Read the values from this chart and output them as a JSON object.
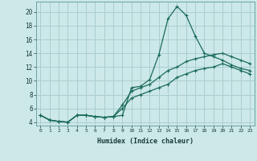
{
  "xlabel": "Humidex (Indice chaleur)",
  "x": [
    0,
    1,
    2,
    3,
    4,
    5,
    6,
    7,
    8,
    9,
    10,
    11,
    12,
    13,
    14,
    15,
    16,
    17,
    18,
    19,
    20,
    21,
    22,
    23
  ],
  "line1": [
    5.0,
    4.3,
    4.1,
    4.0,
    5.0,
    5.0,
    4.8,
    4.7,
    4.8,
    5.0,
    9.0,
    9.2,
    10.2,
    13.8,
    19.0,
    20.8,
    19.5,
    16.5,
    14.0,
    13.5,
    13.0,
    12.3,
    11.8,
    11.5
  ],
  "line2": [
    5.0,
    4.3,
    4.1,
    4.0,
    5.0,
    5.0,
    4.8,
    4.7,
    4.8,
    6.5,
    8.5,
    9.0,
    9.5,
    10.5,
    11.5,
    12.0,
    12.8,
    13.2,
    13.5,
    13.8,
    14.0,
    13.5,
    13.0,
    12.5
  ],
  "line3": [
    5.0,
    4.3,
    4.1,
    4.0,
    5.0,
    5.0,
    4.8,
    4.7,
    4.8,
    6.0,
    7.5,
    8.0,
    8.5,
    9.0,
    9.5,
    10.5,
    11.0,
    11.5,
    11.8,
    12.0,
    12.5,
    12.0,
    11.5,
    11.0
  ],
  "line_color": "#1a6b5a",
  "bg_color": "#cce8e8",
  "grid_color": "#aacece",
  "ylim": [
    3.5,
    21.5
  ],
  "xlim": [
    -0.5,
    23.5
  ],
  "yticks": [
    4,
    6,
    8,
    10,
    12,
    14,
    16,
    18,
    20
  ],
  "xticks": [
    0,
    1,
    2,
    3,
    4,
    5,
    6,
    7,
    8,
    9,
    10,
    11,
    12,
    13,
    14,
    15,
    16,
    17,
    18,
    19,
    20,
    21,
    22,
    23
  ]
}
